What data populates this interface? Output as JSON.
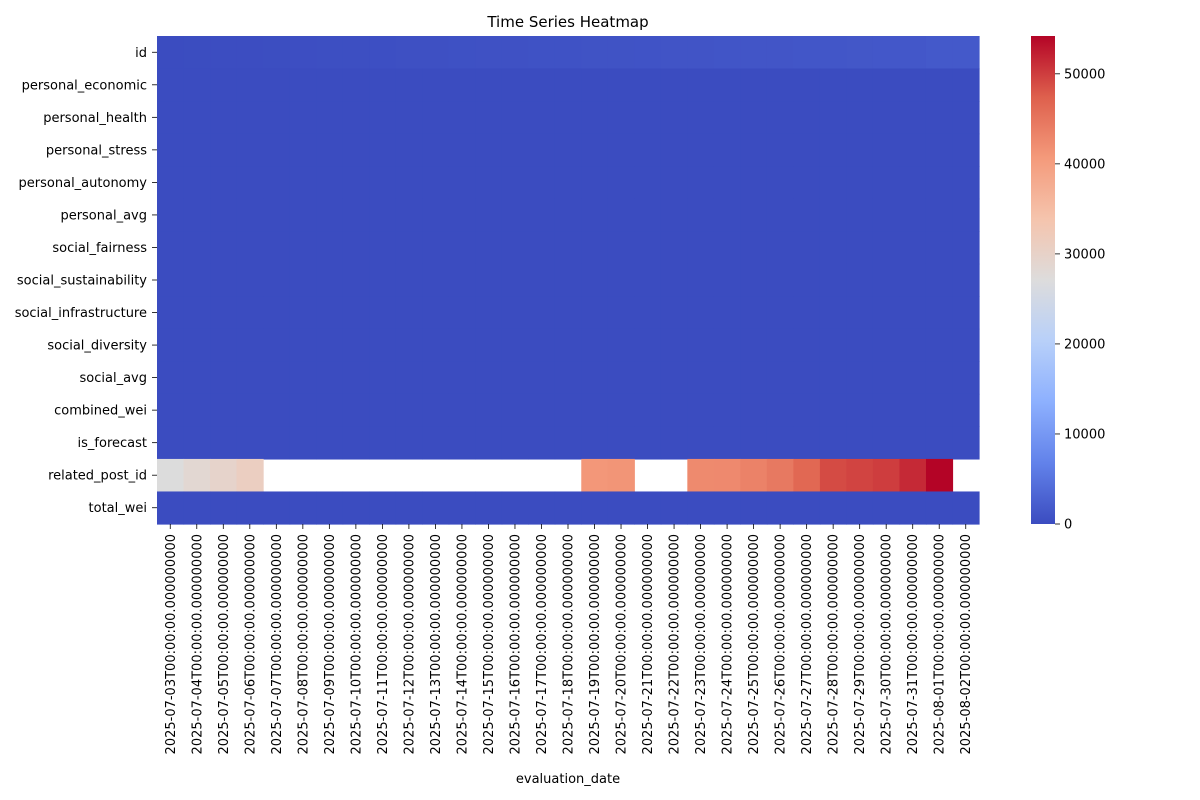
{
  "chart_data": {
    "type": "heatmap",
    "title": "Time Series Heatmap",
    "xlabel": "evaluation_date",
    "ylabel": "",
    "colormap": "coolwarm",
    "color_range": [
      0,
      54200
    ],
    "colorbar_ticks": [
      "0",
      "10000",
      "20000",
      "30000",
      "40000",
      "50000"
    ],
    "colorbar_tick_values": [
      0,
      10000,
      20000,
      30000,
      40000,
      50000
    ],
    "rows": [
      "id",
      "personal_economic",
      "personal_health",
      "personal_stress",
      "personal_autonomy",
      "personal_avg",
      "social_fairness",
      "social_sustainability",
      "social_infrastructure",
      "social_diversity",
      "social_avg",
      "combined_wei",
      "is_forecast",
      "related_post_id",
      "total_wei"
    ],
    "columns": [
      "2025-07-03T00:00:00.000000000",
      "2025-07-04T00:00:00.000000000",
      "2025-07-05T00:00:00.000000000",
      "2025-07-06T00:00:00.000000000",
      "2025-07-07T00:00:00.000000000",
      "2025-07-08T00:00:00.000000000",
      "2025-07-09T00:00:00.000000000",
      "2025-07-10T00:00:00.000000000",
      "2025-07-11T00:00:00.000000000",
      "2025-07-12T00:00:00.000000000",
      "2025-07-13T00:00:00.000000000",
      "2025-07-14T00:00:00.000000000",
      "2025-07-15T00:00:00.000000000",
      "2025-07-16T00:00:00.000000000",
      "2025-07-17T00:00:00.000000000",
      "2025-07-18T00:00:00.000000000",
      "2025-07-19T00:00:00.000000000",
      "2025-07-20T00:00:00.000000000",
      "2025-07-21T00:00:00.000000000",
      "2025-07-22T00:00:00.000000000",
      "2025-07-23T00:00:00.000000000",
      "2025-07-24T00:00:00.000000000",
      "2025-07-25T00:00:00.000000000",
      "2025-07-26T00:00:00.000000000",
      "2025-07-27T00:00:00.000000000",
      "2025-07-28T00:00:00.000000000",
      "2025-07-29T00:00:00.000000000",
      "2025-07-30T00:00:00.000000000",
      "2025-07-31T00:00:00.000000000",
      "2025-08-01T00:00:00.000000000",
      "2025-08-02T00:00:00.000000000"
    ],
    "values": {
      "id": [
        30,
        80,
        130,
        180,
        230,
        280,
        330,
        380,
        430,
        480,
        530,
        580,
        630,
        680,
        730,
        780,
        830,
        880,
        930,
        980,
        1030,
        1080,
        1130,
        1180,
        1230,
        1280,
        1330,
        1380,
        1430,
        1600,
        1650
      ],
      "related_post_id": [
        27000,
        28500,
        29500,
        31000,
        null,
        null,
        null,
        null,
        null,
        null,
        null,
        null,
        null,
        null,
        null,
        null,
        41000,
        41200,
        null,
        null,
        42500,
        42600,
        43500,
        44500,
        46500,
        49000,
        49500,
        50000,
        51500,
        54200,
        null
      ],
      "default_value": 0
    }
  }
}
